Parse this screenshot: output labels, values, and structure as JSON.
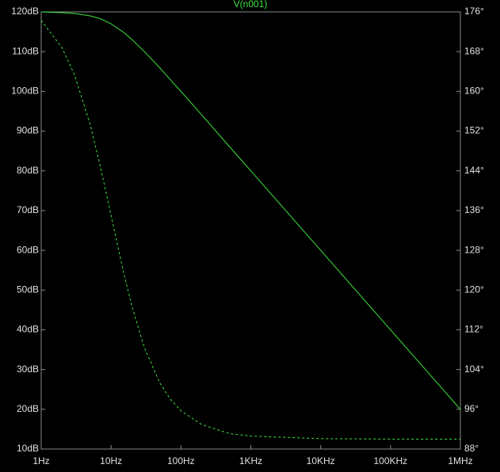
{
  "chart_data": {
    "type": "line",
    "title": "V(n001)",
    "x": [
      1,
      2,
      3,
      5,
      7,
      10,
      15,
      20,
      30,
      50,
      70,
      100,
      200,
      500,
      1000,
      10000,
      100000,
      1000000
    ],
    "xscale": "log",
    "xlim": [
      1,
      1000000
    ],
    "xticks": [
      {
        "value": 1,
        "label": "1Hz"
      },
      {
        "value": 10,
        "label": "10Hz"
      },
      {
        "value": 100,
        "label": "100Hz"
      },
      {
        "value": 1000,
        "label": "1KHz"
      },
      {
        "value": 10000,
        "label": "10KHz"
      },
      {
        "value": 100000,
        "label": "100KHz"
      },
      {
        "value": 1000000,
        "label": "1MHz"
      }
    ],
    "ylim": [
      10,
      120
    ],
    "yticks": [
      {
        "value": 10,
        "label": "10dB"
      },
      {
        "value": 20,
        "label": "20dB"
      },
      {
        "value": 30,
        "label": "30dB"
      },
      {
        "value": 40,
        "label": "40dB"
      },
      {
        "value": 50,
        "label": "50dB"
      },
      {
        "value": 60,
        "label": "60dB"
      },
      {
        "value": 70,
        "label": "70dB"
      },
      {
        "value": 80,
        "label": "80dB"
      },
      {
        "value": 90,
        "label": "90dB"
      },
      {
        "value": 100,
        "label": "100dB"
      },
      {
        "value": 110,
        "label": "110dB"
      },
      {
        "value": 120,
        "label": "120dB"
      }
    ],
    "y2lim": [
      88,
      176
    ],
    "y2ticks": [
      {
        "value": 88,
        "label": "88°"
      },
      {
        "value": 96,
        "label": "96°"
      },
      {
        "value": 104,
        "label": "104°"
      },
      {
        "value": 112,
        "label": "112°"
      },
      {
        "value": 120,
        "label": "120°"
      },
      {
        "value": 128,
        "label": "128°"
      },
      {
        "value": 136,
        "label": "136°"
      },
      {
        "value": 144,
        "label": "144°"
      },
      {
        "value": 152,
        "label": "152°"
      },
      {
        "value": 160,
        "label": "160°"
      },
      {
        "value": 168,
        "label": "168°"
      },
      {
        "value": 176,
        "label": "176°"
      }
    ],
    "grid": false,
    "series": [
      {
        "color": "#3ee23e",
        "line_style": "solid",
        "values": [
          120.0,
          119.8,
          119.6,
          119.0,
          118.3,
          117.0,
          114.9,
          113.0,
          110.0,
          105.9,
          103.0,
          100.0,
          94.0,
          86.0,
          80.0,
          60.0,
          40.0,
          20.0
        ]
      },
      {
        "color": "#3ee23e",
        "line_style": "dashed",
        "axis": "y2",
        "values": [
          174.3,
          168.7,
          163.3,
          153.4,
          145.0,
          135.0,
          123.7,
          116.6,
          108.4,
          101.3,
          98.1,
          95.7,
          92.9,
          91.1,
          90.6,
          90.1,
          90.0,
          90.0
        ]
      }
    ]
  }
}
